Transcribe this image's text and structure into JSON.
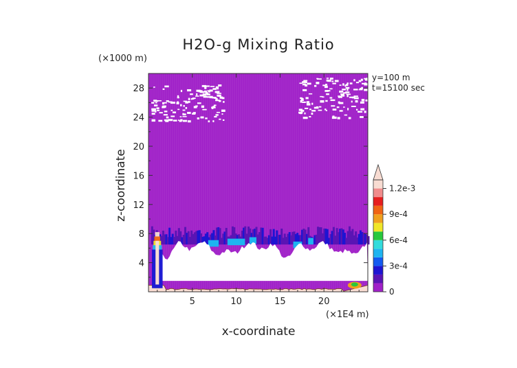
{
  "chart_data": {
    "type": "heatmap",
    "title": "H2O-g Mixing Ratio",
    "xlabel": "x-coordinate",
    "ylabel": "z-coordinate",
    "x_unit": "(×1E4 m)",
    "y_unit": "(×1000 m)",
    "annotations": [
      "y=100 m",
      "t=15100 sec"
    ],
    "xlim": [
      0,
      25
    ],
    "ylim": [
      0,
      30
    ],
    "x_ticks": [
      5,
      10,
      15,
      20
    ],
    "y_ticks": [
      4,
      8,
      12,
      16,
      20,
      24,
      28
    ],
    "grid": false,
    "legend": "right colorbar",
    "colorbar": {
      "levels": [
        0,
        0.0001,
        0.0002,
        0.0003,
        0.0004,
        0.0005,
        0.0006,
        0.0007,
        0.0008,
        0.0009,
        0.001,
        0.0011,
        0.0012
      ],
      "tick_values": [
        0,
        0.0003,
        0.0006,
        0.0009,
        0.0012
      ],
      "tick_labels": [
        "0",
        "3e-4",
        "6e-4",
        "9e-4",
        "1.2e-3"
      ],
      "colors": [
        "#a020c8",
        "#5a14b4",
        "#1e14d2",
        "#145af0",
        "#1eb4f0",
        "#32dcdc",
        "#28c83c",
        "#f0e628",
        "#f0a01e",
        "#f06414",
        "#e61e1e",
        "#f08c8c",
        "#f8dcd2"
      ],
      "extend": "max"
    },
    "fields": {
      "background_value": 0,
      "moist_layer_z": [
        6.5,
        9.0
      ],
      "dry_region_z": [
        1.5,
        6.5
      ],
      "surface_value": 0.0012,
      "upper_patches": [
        {
          "x": [
            0.3,
            8.5
          ],
          "z": [
            23.5,
            28.5
          ]
        },
        {
          "x": [
            17.0,
            25.0
          ],
          "z": [
            24.0,
            29.5
          ]
        }
      ]
    }
  }
}
